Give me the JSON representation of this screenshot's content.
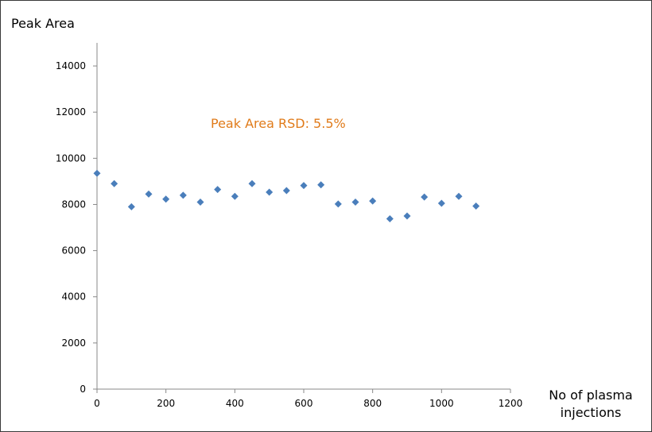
{
  "chart_data": {
    "type": "scatter",
    "title": "",
    "ylabel": "Peak Area",
    "xlabel_lines": [
      "No of plasma",
      "injections"
    ],
    "annotation": "Peak Area RSD: 5.5%",
    "annotation_color": "#e07b1a",
    "marker_color": "#4a7ebb",
    "xlim": [
      0,
      1200
    ],
    "ylim": [
      0,
      15000
    ],
    "xticks": [
      0,
      200,
      400,
      600,
      800,
      1000,
      1200
    ],
    "yticks": [
      0,
      2000,
      4000,
      6000,
      8000,
      10000,
      12000,
      14000
    ],
    "grid": false,
    "legend": "none",
    "points": [
      {
        "x": 0,
        "y": 9350
      },
      {
        "x": 50,
        "y": 8900
      },
      {
        "x": 100,
        "y": 7900
      },
      {
        "x": 150,
        "y": 8450
      },
      {
        "x": 200,
        "y": 8230
      },
      {
        "x": 250,
        "y": 8400
      },
      {
        "x": 300,
        "y": 8100
      },
      {
        "x": 350,
        "y": 8650
      },
      {
        "x": 400,
        "y": 8350
      },
      {
        "x": 450,
        "y": 8900
      },
      {
        "x": 500,
        "y": 8530
      },
      {
        "x": 550,
        "y": 8600
      },
      {
        "x": 600,
        "y": 8820
      },
      {
        "x": 650,
        "y": 8850
      },
      {
        "x": 700,
        "y": 8020
      },
      {
        "x": 750,
        "y": 8100
      },
      {
        "x": 800,
        "y": 8150
      },
      {
        "x": 850,
        "y": 7380
      },
      {
        "x": 900,
        "y": 7500
      },
      {
        "x": 950,
        "y": 8320
      },
      {
        "x": 1000,
        "y": 8050
      },
      {
        "x": 1050,
        "y": 8350
      },
      {
        "x": 1100,
        "y": 7930
      }
    ]
  }
}
